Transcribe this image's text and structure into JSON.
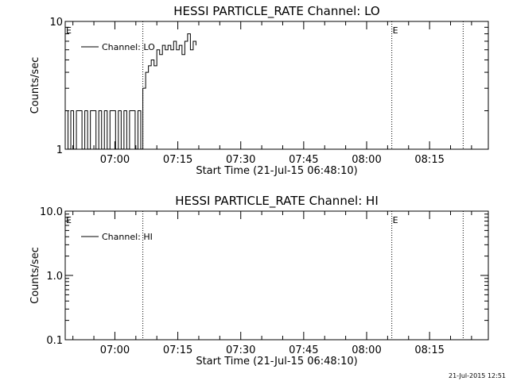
{
  "chart_data": [
    {
      "type": "line",
      "title": "HESSI PARTICLE_RATE Channel: LO",
      "xlabel": "Start Time (21-Jul-15 06:48:10)",
      "ylabel": "Counts/sec",
      "yscale": "log",
      "ylim": [
        1,
        10
      ],
      "xlim": [
        "06:48:10",
        "08:29:00"
      ],
      "x_ticks": [
        "07:00",
        "07:15",
        "07:30",
        "07:45",
        "08:00",
        "08:15"
      ],
      "y_ticks": [
        "1",
        "10"
      ],
      "legend": {
        "label": "Channel: LO",
        "placement": "top-left"
      },
      "markers": [
        {
          "time": "07:06:40",
          "label": ""
        },
        {
          "time": "08:06:00",
          "label": "E"
        },
        {
          "time": "08:23:00",
          "label": ""
        }
      ],
      "edge_label": "E",
      "series": [
        {
          "name": "Channel: LO",
          "x": [
            "06:48:10",
            "06:48:50",
            "06:49:30",
            "06:50:10",
            "06:50:50",
            "06:51:30",
            "06:52:10",
            "06:52:50",
            "06:53:30",
            "06:54:10",
            "06:54:50",
            "06:55:30",
            "06:56:10",
            "06:56:50",
            "06:57:30",
            "06:58:10",
            "06:58:50",
            "06:59:30",
            "07:00:10",
            "07:00:50",
            "07:01:30",
            "07:02:10",
            "07:02:50",
            "07:03:30",
            "07:04:10",
            "07:04:50",
            "07:05:30",
            "07:06:10",
            "07:06:40",
            "07:07:20",
            "07:08:00",
            "07:08:40",
            "07:09:20",
            "07:10:00",
            "07:10:40",
            "07:11:20",
            "07:12:00",
            "07:12:40",
            "07:13:20",
            "07:14:00",
            "07:14:40",
            "07:15:20",
            "07:16:00",
            "07:16:40",
            "07:17:20",
            "07:18:00",
            "07:18:40",
            "07:19:20"
          ],
          "y": [
            2,
            1,
            2,
            1,
            2,
            2,
            1,
            2,
            1,
            2,
            2,
            1,
            2,
            1,
            2,
            1,
            2,
            2,
            1,
            2,
            1,
            2,
            1,
            2,
            2,
            1,
            2,
            1,
            3,
            4,
            4.5,
            5,
            4.5,
            6,
            5.5,
            6.5,
            6,
            6.5,
            6,
            7,
            6,
            6.5,
            5.5,
            7,
            8,
            6,
            7,
            6.5
          ]
        }
      ]
    },
    {
      "type": "line",
      "title": "HESSI PARTICLE_RATE Channel: HI",
      "xlabel": "Start Time (21-Jul-15 06:48:10)",
      "ylabel": "Counts/sec",
      "yscale": "log",
      "ylim": [
        0.1,
        10
      ],
      "xlim": [
        "06:48:10",
        "08:29:00"
      ],
      "x_ticks": [
        "07:00",
        "07:15",
        "07:30",
        "07:45",
        "08:00",
        "08:15"
      ],
      "y_ticks": [
        "0.1",
        "1.0",
        "10.0"
      ],
      "legend": {
        "label": "Channel: HI",
        "placement": "top-left"
      },
      "markers": [
        {
          "time": "07:06:40",
          "label": ""
        },
        {
          "time": "08:06:00",
          "label": "E"
        },
        {
          "time": "08:23:00",
          "label": ""
        }
      ],
      "edge_label": "E",
      "series": [
        {
          "name": "Channel: HI",
          "x": [],
          "y": []
        }
      ]
    }
  ],
  "footer": {
    "timestamp": "21-Jul-2015 12:51"
  }
}
